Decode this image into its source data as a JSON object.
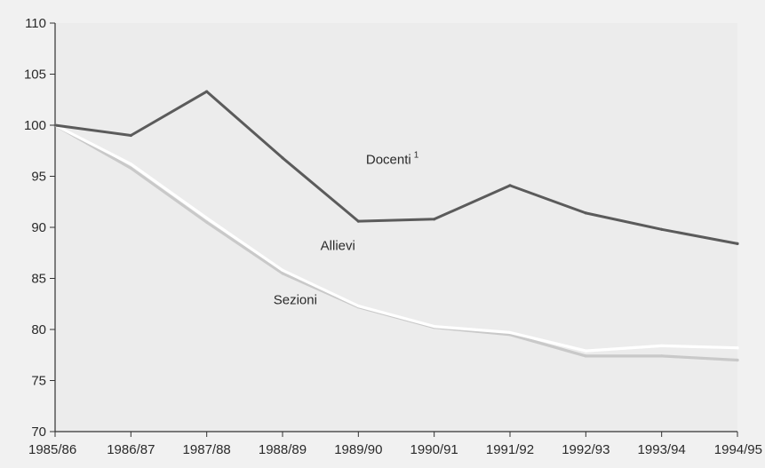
{
  "chart_data": {
    "type": "line",
    "title": "",
    "xlabel": "",
    "ylabel": "",
    "categories": [
      "1985/86",
      "1986/87",
      "1987/88",
      "1988/89",
      "1989/90",
      "1990/91",
      "1991/92",
      "1992/93",
      "1993/94",
      "1994/95"
    ],
    "ylim": [
      70,
      110
    ],
    "yticks": [
      70,
      75,
      80,
      85,
      90,
      95,
      100,
      105,
      110
    ],
    "grid": false,
    "legend": "none (series labelled directly on the lines)",
    "series": [
      {
        "name": "Docenti",
        "superscript": "1",
        "color": "#5b5b5b",
        "values": [
          100,
          99.0,
          103.3,
          96.8,
          90.6,
          90.8,
          94.1,
          91.4,
          89.8,
          88.4
        ]
      },
      {
        "name": "Allievi",
        "color": "#ffffff",
        "values": [
          100,
          96.2,
          90.9,
          85.8,
          82.3,
          80.3,
          79.7,
          77.9,
          78.4,
          78.2
        ]
      },
      {
        "name": "Sezioni",
        "color": "#c9c9c9",
        "values": [
          100,
          95.8,
          90.5,
          85.5,
          82.2,
          80.2,
          79.5,
          77.4,
          77.4,
          77.0
        ]
      }
    ]
  }
}
